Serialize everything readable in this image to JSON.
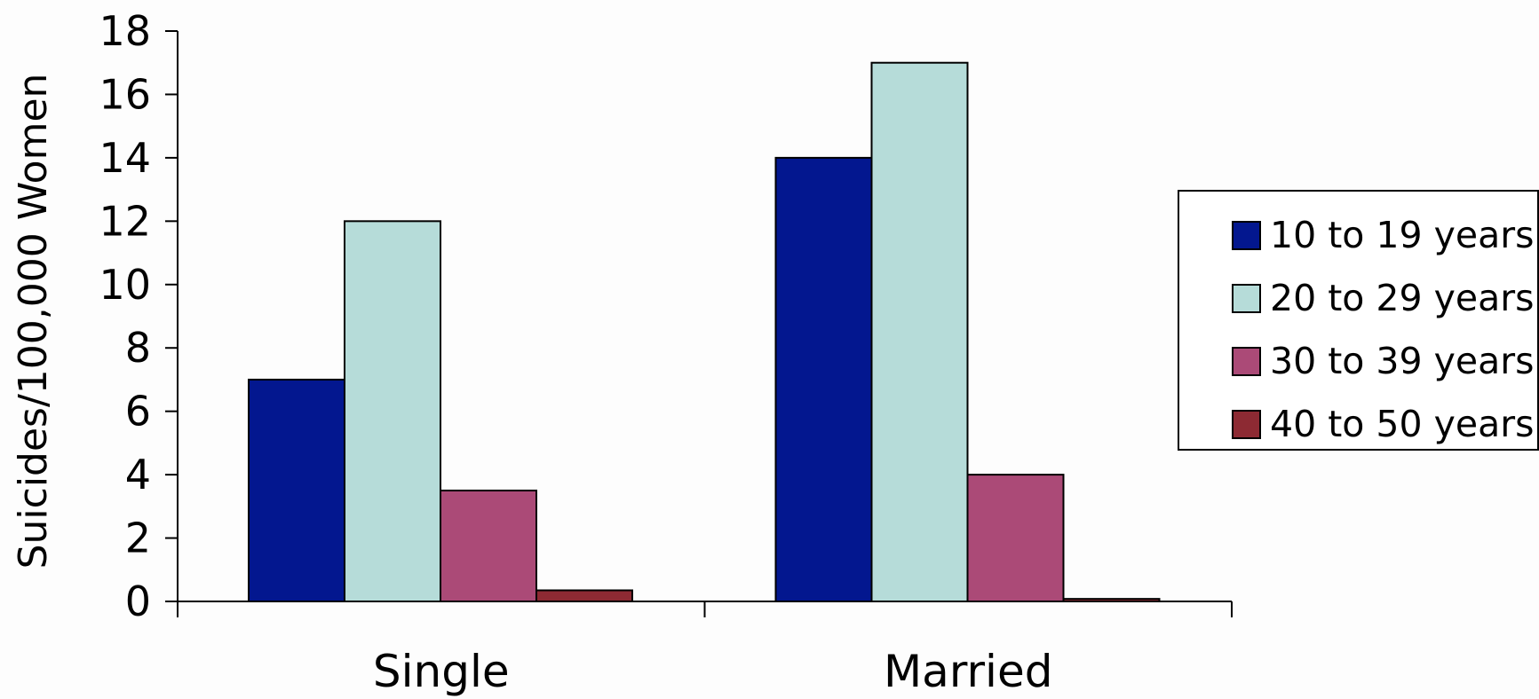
{
  "chart_data": {
    "type": "bar",
    "title": "",
    "xlabel": "",
    "ylabel": "Suicides/100,000 Women",
    "categories": [
      "Single",
      "Married"
    ],
    "series": [
      {
        "name": "10 to 19 years",
        "values": [
          7,
          14
        ],
        "color": "#03178f"
      },
      {
        "name": "20 to 29 years",
        "values": [
          12,
          17
        ],
        "color": "#b6dcd9"
      },
      {
        "name": "30 to 39 years",
        "values": [
          3.5,
          4
        ],
        "color": "#ab4a77"
      },
      {
        "name": "40 to 50 years",
        "values": [
          0.35,
          0.08
        ],
        "color": "#8d2a33"
      }
    ],
    "ylim": [
      0,
      18
    ],
    "yticks": [
      0,
      2,
      4,
      6,
      8,
      10,
      12,
      14,
      16,
      18
    ],
    "ytick_labels": [
      "0",
      "2",
      "4",
      "6",
      "8",
      "10",
      "12",
      "14",
      "16",
      "18"
    ],
    "grid": false,
    "legend": "right"
  }
}
